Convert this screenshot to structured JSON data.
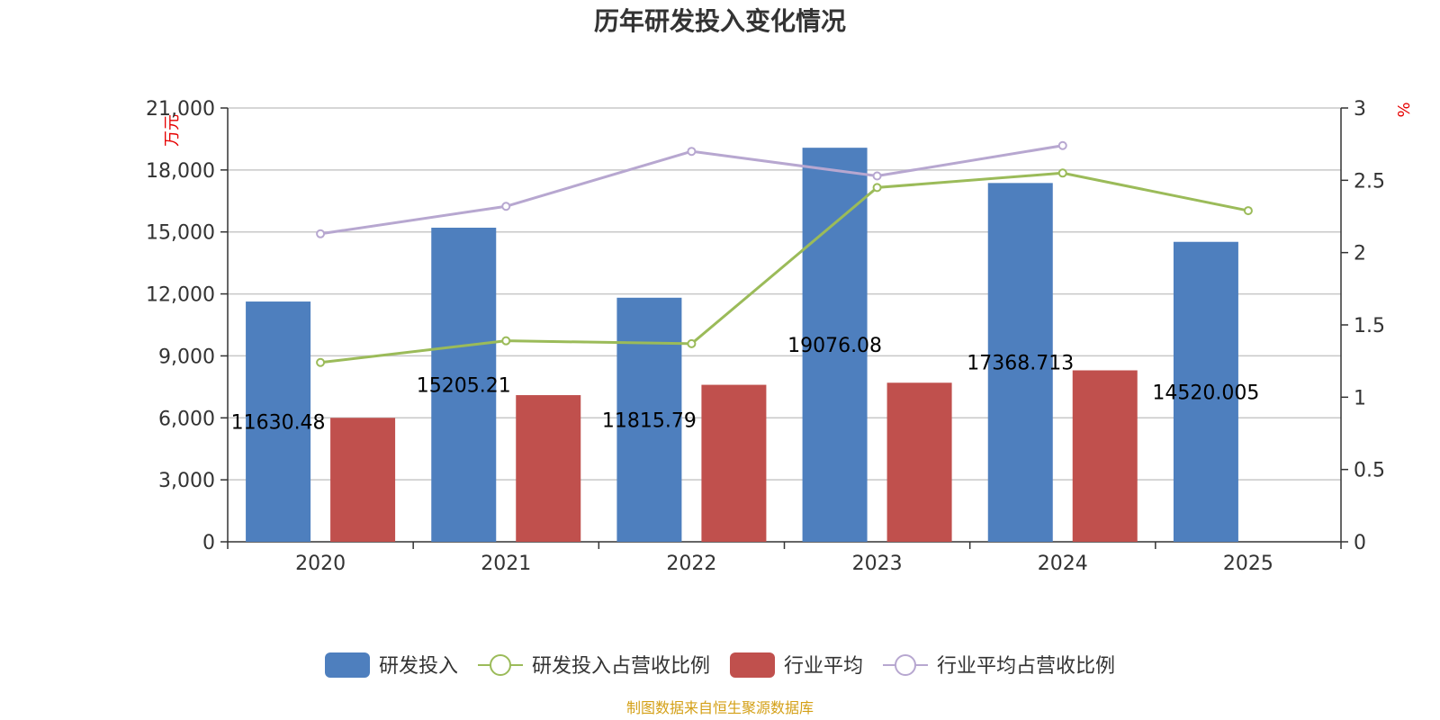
{
  "chart_data": {
    "type": "bar",
    "title": "历年研发投入变化情况",
    "categories": [
      "2020",
      "2021",
      "2022",
      "2023",
      "2024",
      "2025"
    ],
    "y_left": {
      "unit": "万元",
      "ylim": [
        0,
        21000
      ],
      "ticks": [
        "0",
        "3,000",
        "6,000",
        "9,000",
        "12,000",
        "15,000",
        "18,000",
        "21,000"
      ]
    },
    "y_right": {
      "unit": "%",
      "ylim": [
        0,
        3
      ],
      "ticks": [
        "0",
        "0.5",
        "1",
        "1.5",
        "2",
        "2.5",
        "3"
      ]
    },
    "series": [
      {
        "name": "研发投入",
        "type": "bar",
        "axis": "left",
        "color": "#4e7fbe",
        "values": [
          11630.48,
          15205.21,
          11815.79,
          19076.08,
          17368.713,
          14520.005
        ],
        "labels": [
          "11630.48",
          "15205.21",
          "11815.79",
          "19076.08",
          "17368.713",
          "14520.005"
        ]
      },
      {
        "name": "研发投入占营收比例",
        "type": "line",
        "axis": "right",
        "color": "#9bbb59",
        "values": [
          1.24,
          1.39,
          1.37,
          2.45,
          2.55,
          2.29
        ]
      },
      {
        "name": "行业平均",
        "type": "bar",
        "axis": "left",
        "color": "#c0504d",
        "values": [
          6000,
          7100,
          7600,
          7700,
          8300,
          null
        ]
      },
      {
        "name": "行业平均占营收比例",
        "type": "line",
        "axis": "right",
        "color": "#b7a7d0",
        "values": [
          2.13,
          2.32,
          2.7,
          2.53,
          2.74,
          null
        ]
      }
    ],
    "grid": true,
    "legend_position": "bottom"
  },
  "source": "制图数据来自恒生聚源数据库"
}
